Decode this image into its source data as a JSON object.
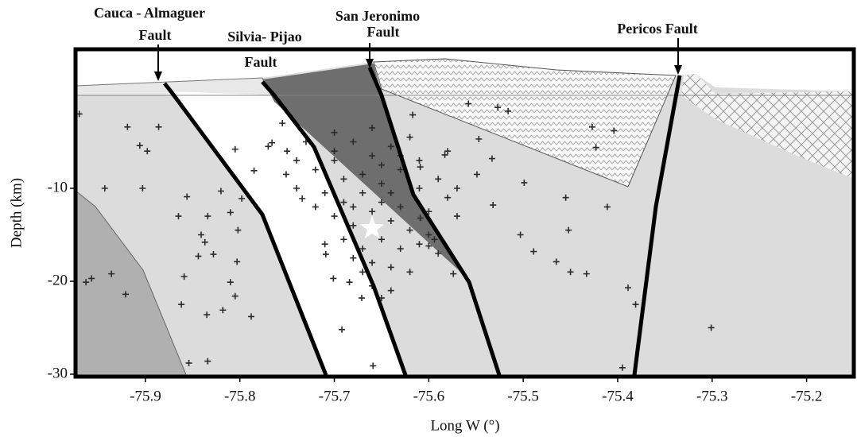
{
  "chart_data": {
    "type": "scatter",
    "x_label": "Long W (°)",
    "y_label": "Depth (km)",
    "xlim": [
      -75.974,
      -75.15
    ],
    "ylim": [
      -30.26,
      4.96
    ],
    "xticks": [
      -75.9,
      -75.8,
      -75.7,
      -75.6,
      -75.5,
      -75.4,
      -75.3,
      -75.2
    ],
    "yticks": [
      -10,
      -20,
      -30
    ],
    "annotations": [
      "Cauca - Almaguer",
      "Fault",
      "Silvia- Pijao",
      "Fault",
      "San Jeronimo",
      "Fault",
      "Pericos Fault"
    ],
    "series": [
      {
        "color": "#2a2a2a",
        "marker": "plus",
        "x": [
          -75.97,
          -75.919,
          -75.906,
          -75.898,
          -75.903,
          -75.943,
          -75.886,
          -75.963,
          -75.957,
          -75.936,
          -75.921,
          -75.862,
          -75.859,
          -75.865,
          -75.856,
          -75.841,
          -75.844,
          -75.835,
          -75.834,
          -75.818,
          -75.81,
          -75.805,
          -75.803,
          -75.802,
          -75.81,
          -75.82,
          -75.834,
          -75.828,
          -75.788,
          -75.854,
          -75.837,
          -75.798,
          -75.785,
          -75.805,
          -75.755,
          -75.766,
          -75.751,
          -75.734,
          -75.709,
          -75.701,
          -75.692,
          -75.684,
          -75.659,
          -75.65,
          -75.671,
          -75.617,
          -75.609,
          -75.583,
          -75.57,
          -75.558,
          -75.547,
          -75.549,
          -75.532,
          -75.533,
          -75.574,
          -75.6,
          -75.609,
          -75.516,
          -75.499,
          -75.503,
          -75.489,
          -75.465,
          -75.455,
          -75.45,
          -75.433,
          -75.452,
          -75.427,
          -75.423,
          -75.411,
          -75.404,
          -75.395,
          -75.389,
          -75.381,
          -75.301,
          -75.527,
          -75.594,
          -75.7,
          -75.68,
          -75.66,
          -75.64,
          -75.72,
          -75.69,
          -75.67,
          -75.65,
          -75.63,
          -75.61,
          -75.74,
          -75.71,
          -75.69,
          -75.67,
          -75.65,
          -75.63,
          -75.61,
          -75.59,
          -75.7,
          -75.68,
          -75.66,
          -75.64,
          -75.62,
          -75.6,
          -75.69,
          -75.67,
          -75.65,
          -75.63,
          -75.61,
          -75.66,
          -75.64,
          -75.68,
          -75.62,
          -75.66,
          -75.64,
          -75.73,
          -75.75,
          -75.77,
          -75.7,
          -75.66,
          -75.62,
          -75.58,
          -75.72,
          -75.74,
          -75.58,
          -75.57,
          -75.6,
          -75.66,
          -75.68,
          -75.64,
          -75.7,
          -75.63,
          -75.59,
          -75.71,
          -75.65,
          -75.67
        ],
        "values": [
          -2.0,
          -3.4,
          -5.4,
          -6.0,
          -10.0,
          -10.0,
          -3.4,
          -20.1,
          -19.7,
          -19.2,
          -21.4,
          -22.5,
          -19.5,
          -13.0,
          -10.9,
          -15.0,
          -17.3,
          -23.6,
          -28.6,
          -23.1,
          -20.1,
          -21.6,
          -17.9,
          -14.5,
          -12.6,
          -10.3,
          -13.0,
          -17.1,
          -23.8,
          -28.8,
          -15.8,
          -11.1,
          -8.1,
          -5.8,
          -3.0,
          -5.1,
          -8.5,
          -11.1,
          -17.1,
          -19.7,
          -25.2,
          -20.1,
          -29.1,
          -21.8,
          -21.8,
          -2.1,
          -7.7,
          -6.4,
          -10.0,
          -0.9,
          -4.7,
          -8.5,
          -11.8,
          -6.8,
          -19.2,
          -16.2,
          -13.2,
          -1.7,
          -9.4,
          -15.0,
          -16.8,
          -17.9,
          -11.0,
          -19.0,
          -19.2,
          -14.5,
          -3.4,
          -5.6,
          -12.0,
          -3.8,
          -29.3,
          -20.7,
          -22.5,
          -25.0,
          -1.3,
          -15.5,
          -6,
          -5,
          -6.5,
          -5.5,
          -8,
          -9,
          -8.5,
          -9.5,
          -8,
          -7,
          -7,
          -10.5,
          -11.5,
          -10.5,
          -11.5,
          -12,
          -10,
          -9,
          -13,
          -14,
          -12.5,
          -13.5,
          -14.5,
          -12.5,
          -15.5,
          -16.5,
          -15.5,
          -16.5,
          -16,
          -18,
          -18.5,
          -17.5,
          -19,
          -20.5,
          -21,
          -5,
          -6,
          -5.5,
          -4,
          -3.5,
          -4.5,
          -6,
          -12,
          -10,
          -11,
          -13,
          -15,
          -14,
          -12,
          -10.5,
          -7,
          -6.5,
          -17,
          -16,
          -7.5,
          -19
        ]
      },
      {
        "color": "#ffffff",
        "marker": "star",
        "x": [
          -75.66
        ],
        "values": [
          -14.3
        ]
      }
    ]
  }
}
